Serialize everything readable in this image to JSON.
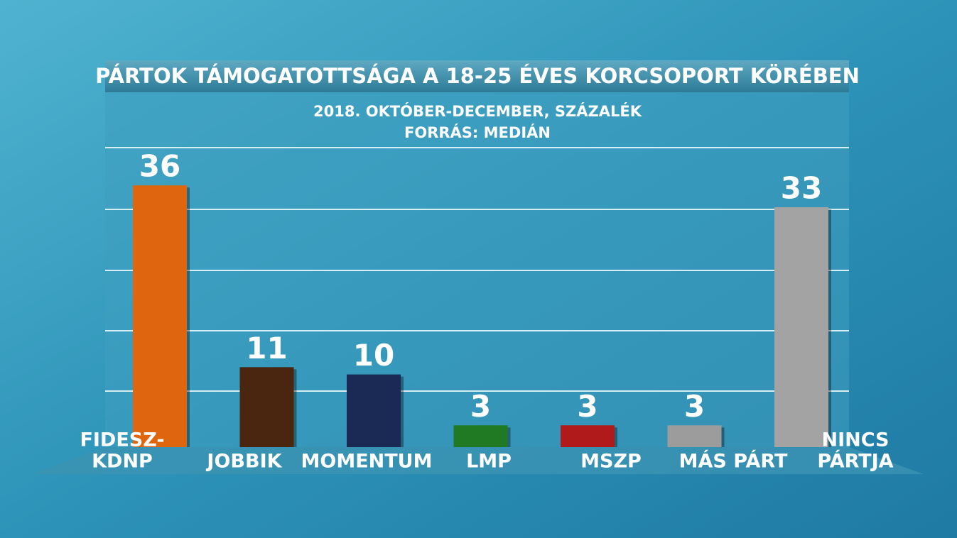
{
  "chart_data": {
    "type": "bar",
    "title": "PÁRTOK TÁMOGATOTTSÁGA A 18-25 ÉVES KORCSOPORT KÖRÉBEN",
    "subtitle": [
      "2018. OKTÓBER-DECEMBER, SZÁZALÉK",
      "FORRÁS: MEDIÁN"
    ],
    "categories": [
      [
        "FIDESZ-",
        "KDNP"
      ],
      [
        "JOBBIK"
      ],
      [
        "MOMENTUM"
      ],
      [
        "LMP"
      ],
      [
        "MSZP"
      ],
      [
        "MÁS PÁRT"
      ],
      [
        "NINCS",
        "PÁRTJA"
      ]
    ],
    "values": [
      36,
      11,
      10,
      3,
      3,
      3,
      33
    ],
    "colors": [
      "#e0650f",
      "#4a2510",
      "#1a2a55",
      "#1f7a23",
      "#b01a1a",
      "#9c9c9c",
      "#a3a3a3"
    ],
    "ylim": [
      0,
      41
    ]
  }
}
